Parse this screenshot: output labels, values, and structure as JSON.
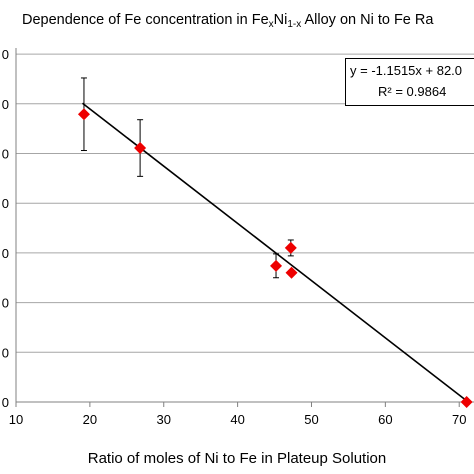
{
  "chart_data": {
    "type": "scatter",
    "title_parts": {
      "pre": "Dependence of Fe concentration in Fe",
      "sub1": "x",
      "mid": "Ni",
      "sub2": "1-x",
      "post": " Alloy on Ni to Fe Ra"
    },
    "xlabel": "Ratio of moles of Ni to Fe in Plateup Solution",
    "ylabel": "",
    "xlim": [
      10,
      72
    ],
    "xticks": [
      "10",
      "20",
      "30",
      "40",
      "50",
      "60",
      "70"
    ],
    "yticks": [
      "0",
      "0",
      "0",
      "0",
      "0",
      "0",
      "0",
      "0"
    ],
    "points": [
      {
        "x": 19.2,
        "y": 57.9,
        "err": 7.3
      },
      {
        "x": 26.8,
        "y": 51.1,
        "err": 5.7
      },
      {
        "x": 45.2,
        "y": 27.4,
        "err": 2.4
      },
      {
        "x": 47.2,
        "y": 31.0,
        "err": 1.6
      },
      {
        "x": 47.3,
        "y": 26.0,
        "err": 0
      },
      {
        "x": 71.0,
        "y": 0.0,
        "err": 0
      }
    ],
    "trendline": {
      "slope": -1.1515,
      "intercept": 82.0
    },
    "trendline_equation": "y = -1.1515x + 82.0",
    "r_squared": "R² = 0.9864",
    "marker_color": "#ee0000",
    "line_color": "#000000",
    "grid": true,
    "legend": "none"
  }
}
